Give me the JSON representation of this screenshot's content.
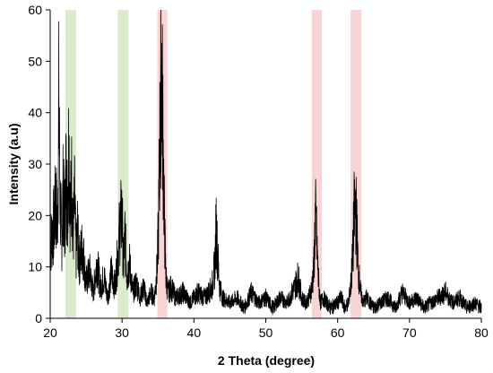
{
  "chart_data": {
    "type": "line",
    "title": "",
    "xlabel": "2 Theta (degree)",
    "ylabel": "Intensity (a.u)",
    "xlim": [
      20,
      80
    ],
    "ylim": [
      0,
      60
    ],
    "xticks": [
      20,
      30,
      40,
      50,
      60,
      70,
      80
    ],
    "yticks": [
      0,
      10,
      20,
      30,
      40,
      50,
      60
    ],
    "grid": false,
    "line_color": "#000000",
    "highlight_bands": [
      {
        "x_start": 22.1,
        "x_end": 23.6,
        "color": "#d6e8c6"
      },
      {
        "x_start": 29.4,
        "x_end": 30.9,
        "color": "#d6e8c6"
      },
      {
        "x_start": 34.9,
        "x_end": 36.3,
        "color": "#f8cccc"
      },
      {
        "x_start": 56.4,
        "x_end": 57.8,
        "color": "#f8cccc"
      },
      {
        "x_start": 61.8,
        "x_end": 63.3,
        "color": "#f8cccc"
      }
    ],
    "series": [
      {
        "x": [
          20.0,
          20.5,
          20.8,
          21.0,
          21.2,
          21.4,
          21.6,
          21.8,
          22.0,
          22.2,
          22.4,
          22.6,
          22.8,
          23.0,
          23.2,
          23.4,
          23.6,
          23.8,
          24.0,
          24.5,
          25.0,
          25.5,
          26.0,
          26.5,
          27.0,
          27.5,
          28.0,
          28.5,
          29.0,
          29.4,
          29.7,
          30.0,
          30.2,
          30.4,
          30.7,
          31.0,
          31.5,
          32.0,
          32.5,
          33.0,
          33.5,
          34.0,
          34.5,
          34.9,
          35.1,
          35.3,
          35.5,
          35.7,
          35.9,
          36.1,
          36.4,
          36.8,
          37.5,
          38.5,
          39.5,
          40.5,
          41.5,
          42.5,
          42.9,
          43.1,
          43.3,
          43.6,
          44.0,
          45.0,
          46.0,
          47.0,
          48.0,
          49.0,
          50.0,
          51.0,
          52.0,
          53.0,
          54.0,
          54.5,
          55.0,
          55.5,
          56.0,
          56.4,
          56.7,
          56.9,
          57.1,
          57.3,
          57.6,
          58.0,
          59.0,
          60.0,
          60.5,
          61.0,
          61.5,
          61.8,
          62.1,
          62.3,
          62.5,
          62.7,
          62.9,
          63.2,
          63.6,
          64.0,
          65.0,
          66.0,
          67.0,
          68.0,
          69.0,
          70.0,
          71.0,
          72.0,
          73.0,
          74.0,
          75.0,
          76.0,
          77.0,
          78.0,
          79.0,
          80.0
        ],
        "y": [
          14,
          18,
          23,
          17,
          41,
          22,
          15,
          25,
          18,
          28,
          22,
          35,
          20,
          27,
          16,
          23,
          12,
          17,
          11,
          14,
          7,
          9,
          5,
          11,
          6,
          8,
          4,
          9,
          6,
          12,
          18,
          20,
          10,
          16,
          8,
          11,
          5,
          7,
          4,
          6,
          3,
          5,
          4,
          10,
          20,
          38,
          50,
          35,
          18,
          8,
          5,
          6,
          4,
          5,
          3,
          5,
          4,
          6,
          10,
          18,
          12,
          6,
          4,
          3,
          4,
          2,
          5,
          3,
          4,
          2,
          4,
          3,
          6,
          8,
          4,
          3,
          4,
          6,
          10,
          20,
          15,
          8,
          3,
          4,
          2,
          3,
          4,
          2,
          3,
          6,
          12,
          20,
          22,
          16,
          9,
          5,
          3,
          4,
          2,
          3,
          4,
          2,
          5,
          3,
          4,
          2,
          3,
          4,
          5,
          3,
          4,
          2,
          3,
          2
        ]
      }
    ]
  }
}
